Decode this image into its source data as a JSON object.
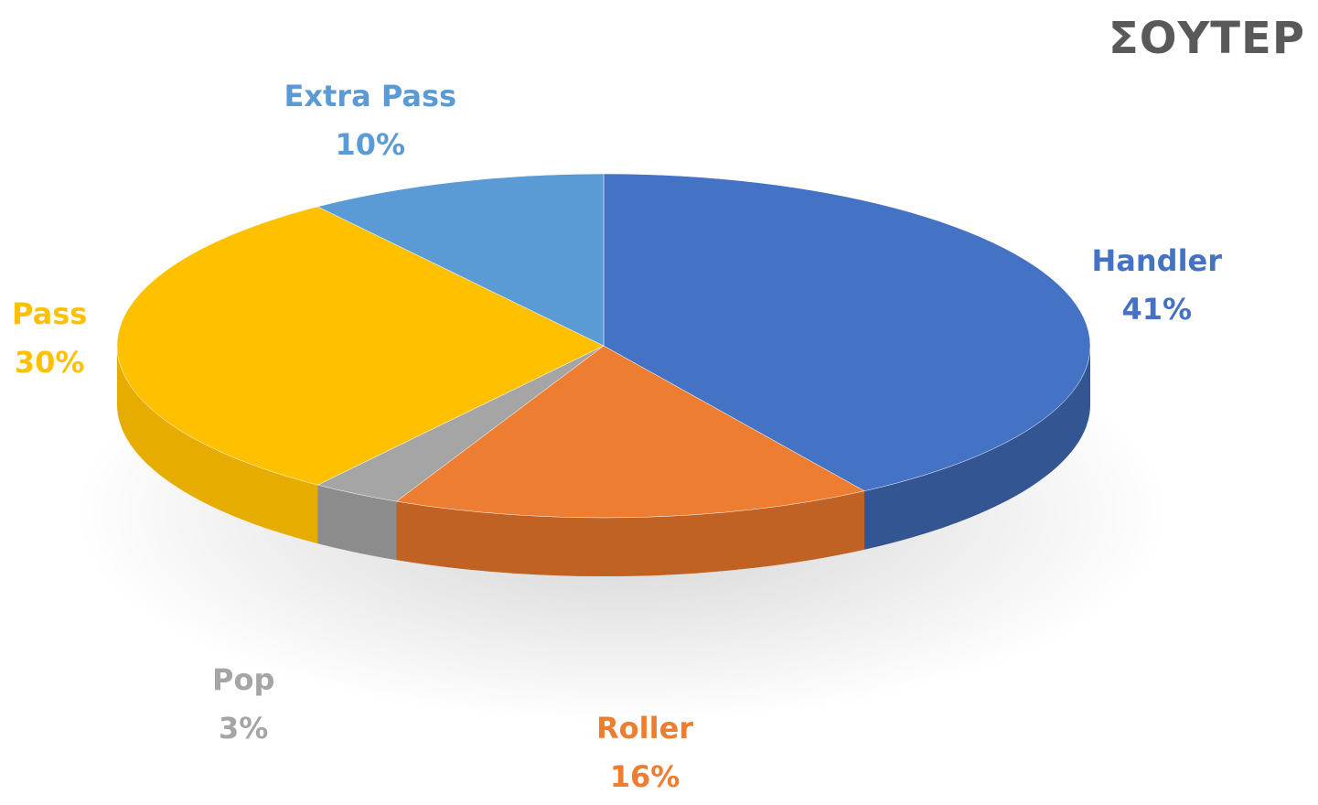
{
  "chart_data": {
    "type": "pie",
    "title": "ΣΟΥΤΕΡ",
    "slices": [
      {
        "label": "Handler",
        "value": 41,
        "value_label": "41%",
        "color": "#4472C4",
        "side_color": "#1F3155"
      },
      {
        "label": "Roller",
        "value": 16,
        "value_label": "16%",
        "color": "#ED7D31",
        "side_color": "#8A4012"
      },
      {
        "label": "Pop",
        "value": 3,
        "value_label": "3%",
        "color": "#A5A5A5",
        "side_color": "#6E6E6E"
      },
      {
        "label": "Pass",
        "value": 30,
        "value_label": "30%",
        "color": "#FFC000",
        "side_color": "#C99400"
      },
      {
        "label": "Extra Pass",
        "value": 10,
        "value_label": "10%",
        "color": "#5B9BD5",
        "side_color": "#2E5F8C"
      }
    ],
    "label_colors": {
      "Handler": "#4472C4",
      "Roller": "#ED7D31",
      "Pop": "#A5A5A5",
      "Pass": "#FFC000",
      "Extra Pass": "#5B9BD5"
    },
    "style": "3d-pie",
    "legend": "none"
  }
}
